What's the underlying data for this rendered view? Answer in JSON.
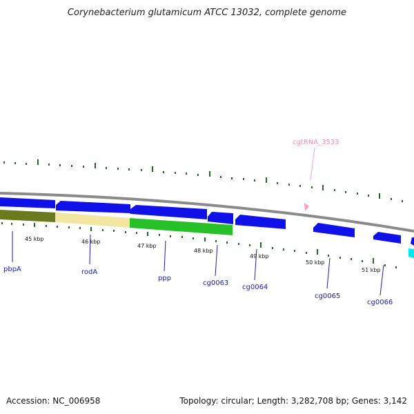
{
  "title": "Corynebacterium glutamicum ATCC 13032, complete genome",
  "footer": {
    "accession": "Accession: NC_006958",
    "topology": "Topology: circular; Length: 3,282,708 bp; Genes: 3,142"
  },
  "colors": {
    "backbone": "#8a8a8a",
    "cds_forward": "#1010e8",
    "cds_shade": "#00008a",
    "tick": "#1a6b1a",
    "rna": "#f4a0c4",
    "label": "#1a1aa8",
    "olive": "#6b7a1e",
    "pale_yellow": "#f2e6a0",
    "green": "#28c028",
    "cyan": "#00e8f0"
  },
  "ticks": [
    "45 kbp",
    "46 kbp",
    "47 kbp",
    "48 kbp",
    "49 kbp",
    "50 kbp",
    "51 kbp"
  ],
  "genes": [
    "pbpA",
    "rodA",
    "ppp",
    "cg0063",
    "cg0064",
    "cg0065",
    "cg0066"
  ],
  "rna_labels": [
    "cgtRNA_3533"
  ]
}
